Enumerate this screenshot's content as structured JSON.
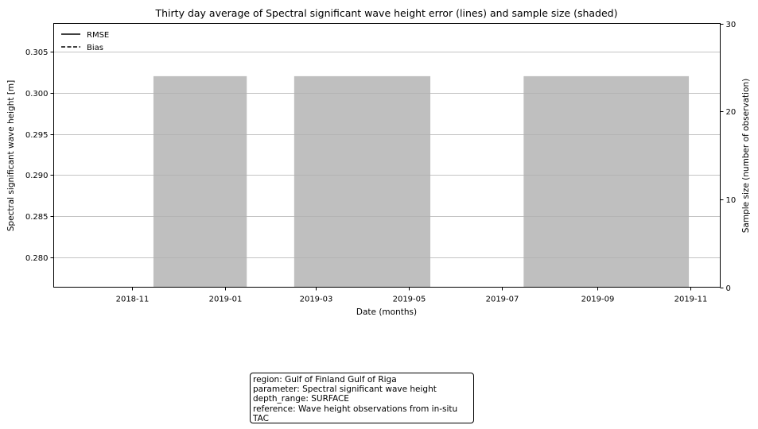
{
  "chart_data": {
    "type": "bar",
    "title": "Thirty day average of Spectral significant wave height error (lines) and sample size (shaded)",
    "xlabel": "Date (months)",
    "ylabel": "Spectral significant wave height [m]",
    "y2label": "Sample size (number of observation)",
    "x_ticks": [
      "2018-11",
      "2019-01",
      "2019-03",
      "2019-05",
      "2019-07",
      "2019-09",
      "2019-11"
    ],
    "y_ticks": [
      "0.280",
      "0.285",
      "0.290",
      "0.295",
      "0.300",
      "0.305"
    ],
    "y2_ticks": [
      "0",
      "10",
      "20",
      "30"
    ],
    "ylim": [
      0.2764,
      0.3084
    ],
    "y2lim": [
      0,
      30
    ],
    "grid": true,
    "legend_position": "top-left",
    "legend": [
      {
        "label": "RMSE",
        "style": "solid"
      },
      {
        "label": "Bias",
        "style": "dashed"
      }
    ],
    "bar_color": "#bfbfbf",
    "bars": [
      {
        "start": "2018-11-15",
        "end": "2019-01-15",
        "value": 24
      },
      {
        "start": "2019-02-15",
        "end": "2019-05-15",
        "value": 24
      },
      {
        "start": "2019-07-15",
        "end": "2019-10-31",
        "value": 24
      }
    ],
    "series": []
  },
  "info": {
    "region": "region: Gulf of Finland Gulf of Riga",
    "parameter": "parameter: Spectral significant wave height",
    "depth_range": "depth_range: SURFACE",
    "reference": "reference: Wave height observations from in-situ TAC"
  }
}
